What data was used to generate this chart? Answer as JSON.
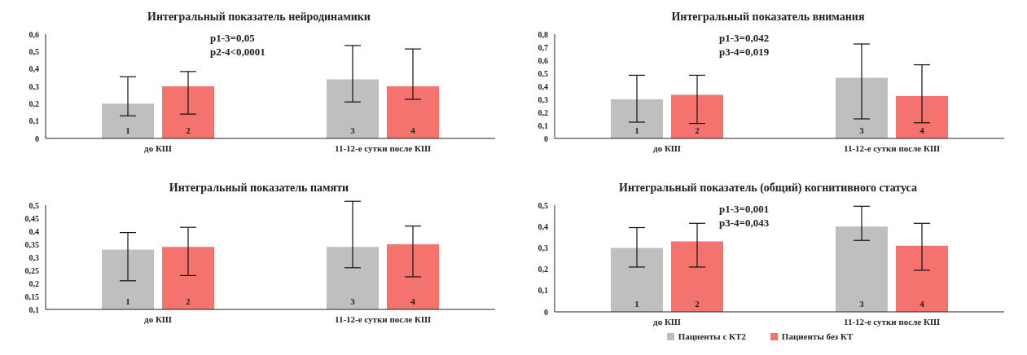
{
  "chart_data": [
    {
      "type": "bar",
      "title": "Интегральный  показатель  нейродинамики",
      "categories": [
        "до КШ",
        "11-12-е сутки после КШ"
      ],
      "series": [
        {
          "color": "#bfbfbf",
          "values": [
            0.2,
            0.34
          ],
          "errors": [
            [
              0.13,
              0.355
            ],
            [
              0.21,
              0.535
            ]
          ]
        },
        {
          "color": "#f4736f",
          "values": [
            0.3,
            0.3
          ],
          "errors": [
            [
              0.14,
              0.385
            ],
            [
              0.225,
              0.515
            ]
          ]
        }
      ],
      "ylim": [
        0,
        0.6
      ],
      "yticks": [
        {
          "value": 0,
          "label": "0"
        },
        {
          "value": 0.1,
          "label": "0,1"
        },
        {
          "value": 0.2,
          "label": "0,2"
        },
        {
          "value": 0.3,
          "label": "0,3"
        },
        {
          "value": 0.4,
          "label": "0,4"
        },
        {
          "value": 0.5,
          "label": "0,5"
        },
        {
          "value": 0.6,
          "label": "0,6"
        }
      ],
      "annotations": [
        "p1-3=0,05",
        "p2-4<0,0001",
        "1",
        "2",
        "3",
        "4"
      ]
    },
    {
      "type": "bar",
      "title": "Интегральный  показатель  внимания",
      "categories": [
        "до КШ",
        "11-12-е сутки после КШ"
      ],
      "series": [
        {
          "color": "#bfbfbf",
          "values": [
            0.3,
            0.465
          ],
          "errors": [
            [
              0.125,
              0.485
            ],
            [
              0.15,
              0.725
            ]
          ]
        },
        {
          "color": "#f4736f",
          "values": [
            0.335,
            0.325
          ],
          "errors": [
            [
              0.115,
              0.485
            ],
            [
              0.12,
              0.565
            ]
          ]
        }
      ],
      "ylim": [
        0,
        0.8
      ],
      "yticks": [
        {
          "value": 0,
          "label": "0"
        },
        {
          "value": 0.1,
          "label": "0,1"
        },
        {
          "value": 0.2,
          "label": "0,2"
        },
        {
          "value": 0.3,
          "label": "0,3"
        },
        {
          "value": 0.4,
          "label": "0,4"
        },
        {
          "value": 0.5,
          "label": "0,5"
        },
        {
          "value": 0.6,
          "label": "0,6"
        },
        {
          "value": 0.7,
          "label": "0,7"
        },
        {
          "value": 0.8,
          "label": "0,8"
        }
      ],
      "annotations": [
        "p1-3=0,042",
        "p3-4=0,019",
        "1",
        "2",
        "3",
        "4"
      ]
    },
    {
      "type": "bar",
      "title": "Интегральный  показатель  памяти",
      "categories": [
        "до КШ",
        "11-12-е сутки после КШ"
      ],
      "series": [
        {
          "color": "#bfbfbf",
          "values": [
            0.33,
            0.34
          ],
          "errors": [
            [
              0.21,
              0.395
            ],
            [
              0.26,
              0.515
            ]
          ]
        },
        {
          "color": "#f4736f",
          "values": [
            0.34,
            0.35
          ],
          "errors": [
            [
              0.23,
              0.415
            ],
            [
              0.225,
              0.42
            ]
          ]
        }
      ],
      "ylim": [
        0.1,
        0.5
      ],
      "yticks": [
        {
          "value": 0.1,
          "label": "0,1"
        },
        {
          "value": 0.15,
          "label": "0,15"
        },
        {
          "value": 0.2,
          "label": "0,2"
        },
        {
          "value": 0.25,
          "label": "0,25"
        },
        {
          "value": 0.3,
          "label": "0,3"
        },
        {
          "value": 0.35,
          "label": "0,35"
        },
        {
          "value": 0.4,
          "label": "0,4"
        },
        {
          "value": 0.45,
          "label": "0,45"
        },
        {
          "value": 0.5,
          "label": "0,5"
        }
      ],
      "annotations": [
        "1",
        "2",
        "3",
        "4"
      ]
    },
    {
      "type": "bar",
      "title": "Интегральный  показатель  (общий)  когнитивного  статуса",
      "categories": [
        "до КШ",
        "11-12-е сутки после КШ"
      ],
      "series": [
        {
          "name": "Пациенты с КТ2",
          "color": "#bfbfbf",
          "values": [
            0.3,
            0.4
          ],
          "errors": [
            [
              0.21,
              0.395
            ],
            [
              0.335,
              0.495
            ]
          ]
        },
        {
          "name": "Пациенты без КТ",
          "color": "#f4736f",
          "values": [
            0.33,
            0.31
          ],
          "errors": [
            [
              0.21,
              0.415
            ],
            [
              0.195,
              0.415
            ]
          ]
        }
      ],
      "ylim": [
        0,
        0.5
      ],
      "yticks": [
        {
          "value": 0,
          "label": "0"
        },
        {
          "value": 0.1,
          "label": "0,1"
        },
        {
          "value": 0.2,
          "label": "0,2"
        },
        {
          "value": 0.3,
          "label": "0,3"
        },
        {
          "value": 0.4,
          "label": "0,4"
        },
        {
          "value": 0.5,
          "label": "0,5"
        }
      ],
      "annotations": [
        "p1-3=0,001",
        "p3-4=0,043",
        "1",
        "2",
        "3",
        "4"
      ],
      "legend": "bottom"
    }
  ]
}
